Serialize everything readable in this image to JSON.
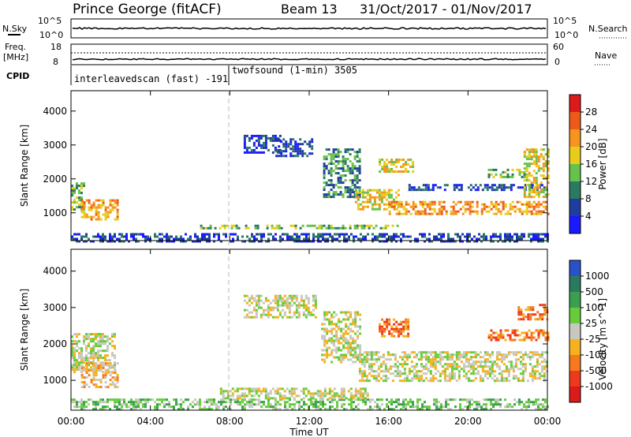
{
  "header": {
    "station": "Prince George (fitACF)",
    "beam": "Beam 13",
    "dates": "31/Oct/2017 - 01/Nov/2017"
  },
  "top_panels": {
    "nsky_label": "N.Sky",
    "nsky_ticks": [
      "10^5",
      "10^0"
    ],
    "nsearch_label": "N.Search",
    "nsearch_ticks": [
      "10^5",
      "10^0"
    ],
    "freq_label": "Freq.",
    "freq_unit": "[MHz]",
    "freq_ticks": [
      "18",
      "8"
    ],
    "nave_label": "Nave",
    "nave_ticks": [
      "60",
      "0"
    ],
    "cpid_label": "CPID",
    "cpid_segments": [
      {
        "label": "interleavedscan (fast) -191",
        "start_hour": 0,
        "end_hour": 8
      },
      {
        "label": "twofsound (1-min) 3505",
        "start_hour": 8,
        "end_hour": 24
      }
    ]
  },
  "chart_data": [
    {
      "type": "heatmap",
      "panel": "power",
      "ylabel": "Slant Range [km]",
      "xlabel": "",
      "xlim_hours": [
        0,
        24
      ],
      "ylim": [
        180,
        4600
      ],
      "yticks": [
        "1000",
        "2000",
        "3000",
        "4000"
      ],
      "colorbar": {
        "label": "Power [dB]",
        "ticks": [
          "4",
          "8",
          "12",
          "16",
          "20",
          "24",
          "28"
        ],
        "colors": [
          "#1a1aff",
          "#1f3d9e",
          "#2a7a62",
          "#66c24a",
          "#e8cc1a",
          "#f5941e",
          "#ee5a1a",
          "#dd1a1a"
        ]
      },
      "regions": [
        {
          "t": [
            0.0,
            0.7
          ],
          "r": [
            1100,
            1900
          ],
          "level": 3
        },
        {
          "t": [
            0.5,
            2.3
          ],
          "r": [
            800,
            1400
          ],
          "level": 5
        },
        {
          "t": [
            8.7,
            10.5
          ],
          "r": [
            2800,
            3300
          ],
          "level": 1
        },
        {
          "t": [
            10.3,
            12.2
          ],
          "r": [
            2700,
            3200
          ],
          "level": 1
        },
        {
          "t": [
            12.7,
            14.5
          ],
          "r": [
            1500,
            2900
          ],
          "level": 2
        },
        {
          "t": [
            14.3,
            16.5
          ],
          "r": [
            1100,
            1700
          ],
          "level": 4
        },
        {
          "t": [
            16.0,
            24.0
          ],
          "r": [
            1000,
            1350
          ],
          "level": 5
        },
        {
          "t": [
            15.5,
            17.2
          ],
          "r": [
            2200,
            2600
          ],
          "level": 4
        },
        {
          "t": [
            17.0,
            24.0
          ],
          "r": [
            1650,
            1850
          ],
          "level": 1
        },
        {
          "t": [
            21.0,
            23.0
          ],
          "r": [
            2050,
            2300
          ],
          "level": 3
        },
        {
          "t": [
            22.8,
            24.0
          ],
          "r": [
            1500,
            2900
          ],
          "level": 4
        },
        {
          "t": [
            6.5,
            16.5
          ],
          "r": [
            550,
            650
          ],
          "level": 3
        },
        {
          "t": [
            0.0,
            24.0
          ],
          "r": [
            180,
            400
          ],
          "level": 1
        }
      ]
    },
    {
      "type": "heatmap",
      "panel": "velocity",
      "ylabel": "Slant Range [km]",
      "xlabel": "Time UT",
      "xlim_hours": [
        0,
        24
      ],
      "ylim": [
        180,
        4600
      ],
      "xticks": [
        "00:00",
        "04:00",
        "08:00",
        "12:00",
        "16:00",
        "20:00",
        "00:00"
      ],
      "yticks": [
        "1000",
        "2000",
        "3000",
        "4000"
      ],
      "colorbar": {
        "label": "Velocity [m s^-1]",
        "ticks": [
          "1000",
          "500",
          "100",
          "25",
          "-25",
          "-100",
          "-500",
          "-1000"
        ],
        "colors": [
          "#2a52c8",
          "#2a7a62",
          "#3aa050",
          "#66cc3a",
          "#c8c8c0",
          "#f5b11e",
          "#f57a1e",
          "#ee3a1a",
          "#dd1a1a"
        ]
      },
      "regions": [
        {
          "t": [
            0.0,
            2.2
          ],
          "r": [
            1200,
            2300
          ],
          "level": 4
        },
        {
          "t": [
            0.5,
            2.4
          ],
          "r": [
            800,
            1500
          ],
          "level": 5
        },
        {
          "t": [
            8.7,
            12.3
          ],
          "r": [
            2700,
            3350
          ],
          "level": 4
        },
        {
          "t": [
            12.6,
            14.6
          ],
          "r": [
            1500,
            2900
          ],
          "level": 4
        },
        {
          "t": [
            14.5,
            24.0
          ],
          "r": [
            1000,
            1800
          ],
          "level": 4
        },
        {
          "t": [
            15.5,
            17.0
          ],
          "r": [
            2200,
            2700
          ],
          "level": 6
        },
        {
          "t": [
            21.0,
            24.0
          ],
          "r": [
            2100,
            2400
          ],
          "level": 6
        },
        {
          "t": [
            22.5,
            24.0
          ],
          "r": [
            2700,
            3100
          ],
          "level": 6
        },
        {
          "t": [
            0.0,
            24.0
          ],
          "r": [
            180,
            500
          ],
          "level": 3
        },
        {
          "t": [
            7.5,
            15.0
          ],
          "r": [
            500,
            800
          ],
          "level": 4
        }
      ]
    }
  ]
}
